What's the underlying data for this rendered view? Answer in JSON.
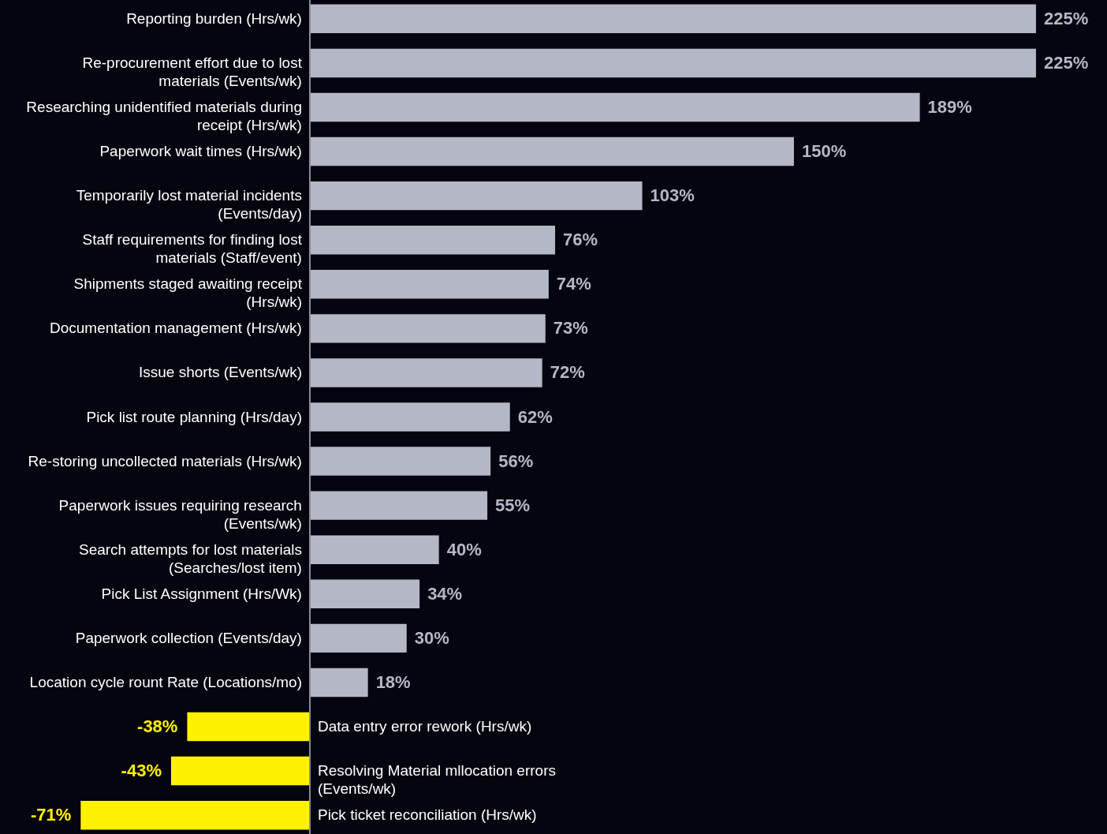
{
  "chart_data": {
    "type": "bar",
    "orientation": "horizontal",
    "categories": [
      "Reporting burden (Hrs/wk)",
      "Re-procurement effort due to lost materials (Events/wk)",
      "Researching unidentified materials during receipt (Hrs/wk)",
      "Paperwork wait times (Hrs/wk)",
      "Temporarily lost material incidents (Events/day)",
      "Staff requirements for finding lost materials (Staff/event)",
      "Shipments staged awaiting receipt (Hrs/wk)",
      "Documentation management (Hrs/wk)",
      "Issue shorts (Events/wk)",
      "Pick list route planning (Hrs/day)",
      "Re-storing uncollected materials (Hrs/wk)",
      "Paperwork issues requiring research (Events/wk)",
      "Search attempts for lost materials (Searches/lost item)",
      "Pick List Assignment (Hrs/Wk)",
      "Paperwork collection (Events/day)",
      "Location cycle rount Rate (Locations/mo)",
      "Data entry error rework (Hrs/wk)",
      "Resolving Material mllocation errors (Events/wk)",
      "Pick ticket reconciliation (Hrs/wk)"
    ],
    "values": [
      225,
      225,
      189,
      150,
      103,
      76,
      74,
      73,
      72,
      62,
      56,
      55,
      40,
      34,
      30,
      18,
      -38,
      -43,
      -71
    ],
    "value_labels": [
      "225%",
      "225%",
      "189%",
      "150%",
      "103%",
      "76%",
      "74%",
      "73%",
      "72%",
      "62%",
      "56%",
      "55%",
      "40%",
      "34%",
      "30%",
      "18%",
      "-38%",
      "-43%",
      "-71%"
    ],
    "colors": [
      "#b4b7c5",
      "#b4b7c5",
      "#b4b7c5",
      "#b4b7c5",
      "#b4b7c5",
      "#b4b7c5",
      "#b4b7c5",
      "#b4b7c5",
      "#b4b7c5",
      "#b4b7c5",
      "#b4b7c5",
      "#b4b7c5",
      "#b4b7c5",
      "#b4b7c5",
      "#b4b7c5",
      "#b4b7c5",
      "#fff200",
      "#fff200",
      "#fff200"
    ],
    "xlim": [
      -96,
      247
    ]
  }
}
